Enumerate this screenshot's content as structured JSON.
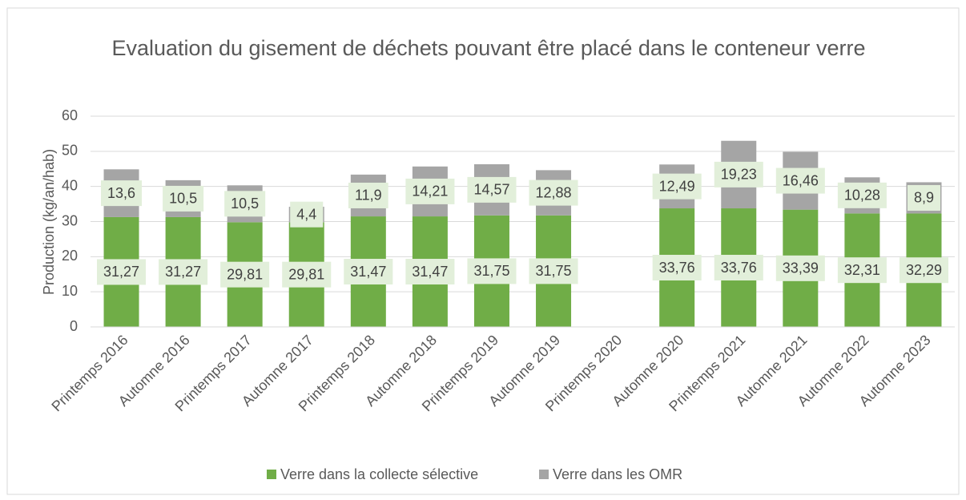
{
  "chart_data": {
    "type": "stacked_bar",
    "title": "Evaluation du gisement de déchets pouvant être placé dans le conteneur verre",
    "y_label": "Production (kg/an/hab)",
    "categories": [
      "Printemps 2016",
      "Automne 2016",
      "Printemps 2017",
      "Automne 2017",
      "Printemps 2018",
      "Automne 2018",
      "Printemps 2019",
      "Automne 2019",
      "Printemps 2020",
      "Automne 2020",
      "Printemps 2021",
      "Automne 2021",
      "Automne 2022",
      "Automne 2023"
    ],
    "series": [
      {
        "name": "Verre dans la collecte sélective",
        "color": "#70ad47",
        "values": [
          31.27,
          31.27,
          29.81,
          29.81,
          31.47,
          31.47,
          31.75,
          31.75,
          null,
          33.76,
          33.76,
          33.39,
          32.31,
          32.29
        ],
        "value_labels": [
          "31,27",
          "31,27",
          "29,81",
          "29,81",
          "31,47",
          "31,47",
          "31,75",
          "31,75",
          null,
          "33,76",
          "33,76",
          "33,39",
          "32,31",
          "32,29"
        ]
      },
      {
        "name": "Verre dans les OMR",
        "color": "#a5a5a5",
        "values": [
          13.6,
          10.5,
          10.5,
          4.4,
          11.9,
          14.21,
          14.57,
          12.88,
          null,
          12.49,
          19.23,
          16.46,
          10.28,
          8.9
        ],
        "value_labels": [
          "13,6",
          "10,5",
          "10,5",
          "4,4",
          "11,9",
          "14,21",
          "14,57",
          "12,88",
          null,
          "12,49",
          "19,23",
          "16,46",
          "10,28",
          "8,9"
        ]
      }
    ],
    "ylim": [
      0,
      60
    ],
    "yticks": [
      0,
      10,
      20,
      30,
      40,
      50,
      60
    ],
    "grid": true,
    "legend": "bottom"
  }
}
